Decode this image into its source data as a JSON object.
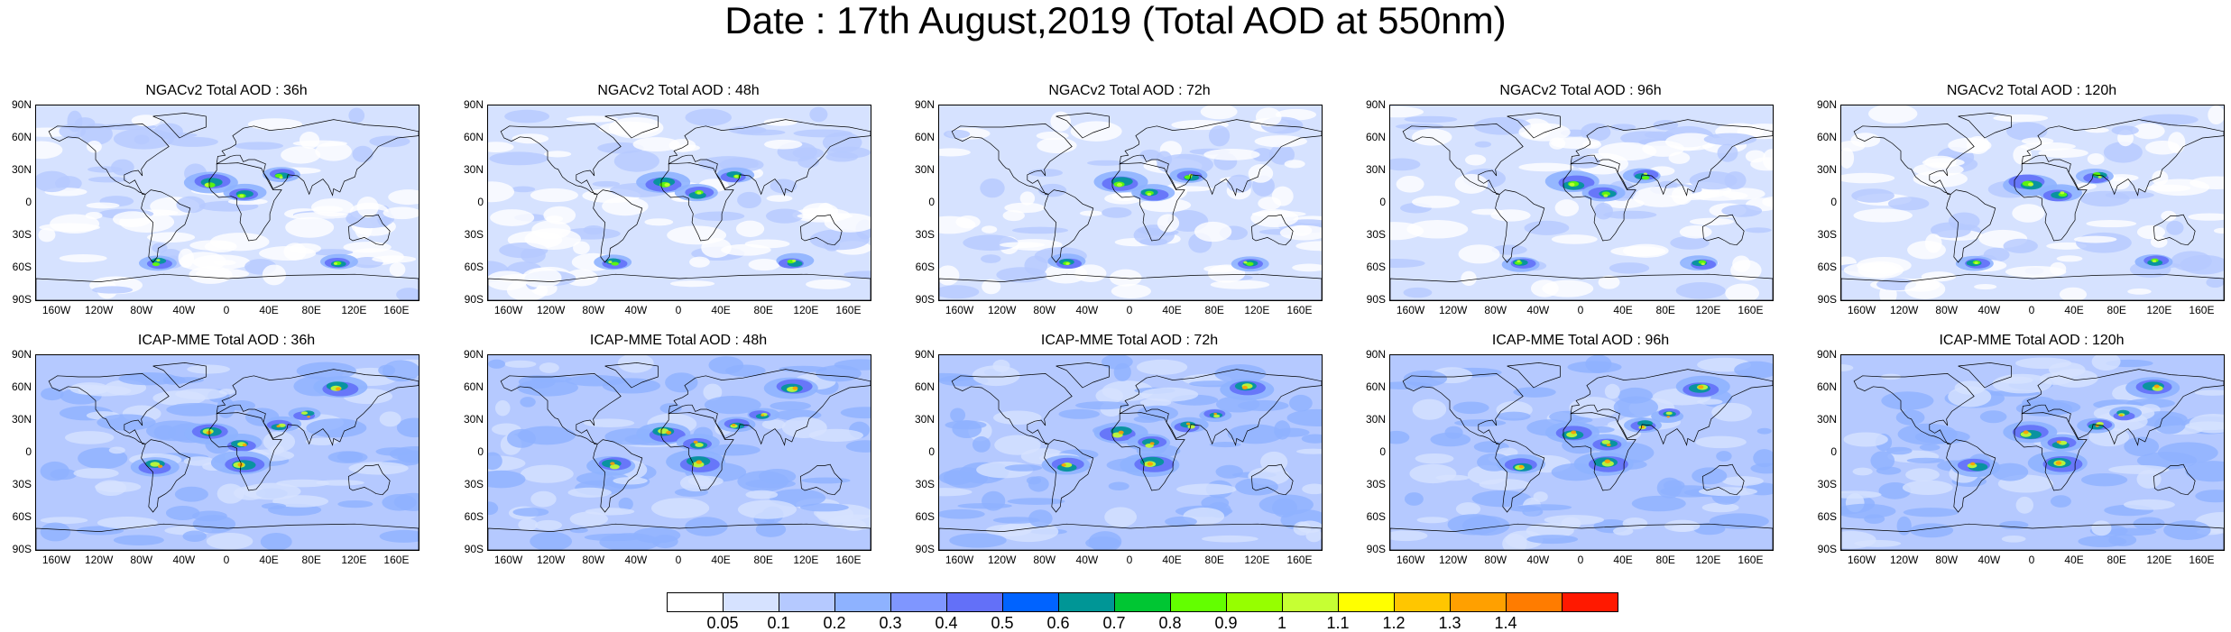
{
  "title": "Date : 17th August,2019 (Total AOD at 550nm)",
  "lat_labels": [
    "90N",
    "60N",
    "30N",
    "0",
    "30S",
    "60S",
    "90S"
  ],
  "lon_labels": [
    "160W",
    "120W",
    "80W",
    "40W",
    "0",
    "40E",
    "80E",
    "120E",
    "160E"
  ],
  "rows": [
    {
      "model": "NGACv2",
      "panels": [
        {
          "title": "NGACv2 Total AOD : 36h"
        },
        {
          "title": "NGACv2 Total AOD : 48h"
        },
        {
          "title": "NGACv2 Total AOD : 72h"
        },
        {
          "title": "NGACv2 Total AOD : 96h"
        },
        {
          "title": "NGACv2 Total AOD : 120h"
        }
      ]
    },
    {
      "model": "ICAP-MME",
      "panels": [
        {
          "title": "ICAP-MME Total AOD : 36h"
        },
        {
          "title": "ICAP-MME Total AOD : 48h"
        },
        {
          "title": "ICAP-MME Total AOD : 72h"
        },
        {
          "title": "ICAP-MME Total AOD : 96h"
        },
        {
          "title": "ICAP-MME Total AOD : 120h"
        }
      ]
    }
  ],
  "colorbar": {
    "labels": [
      "0.05",
      "0.1",
      "0.2",
      "0.3",
      "0.4",
      "0.5",
      "0.6",
      "0.7",
      "0.8",
      "0.9",
      "1",
      "1.1",
      "1.2",
      "1.3",
      "1.4"
    ],
    "colors": [
      "#ffffff",
      "#d6e2ff",
      "#b5c9ff",
      "#8eb2ff",
      "#7f96ff",
      "#6370f8",
      "#0063ff",
      "#009696",
      "#00c633",
      "#63ff00",
      "#96ff00",
      "#c6ff33",
      "#ffff00",
      "#ffc600",
      "#ffa000",
      "#ff7c00",
      "#ff1900"
    ]
  }
}
